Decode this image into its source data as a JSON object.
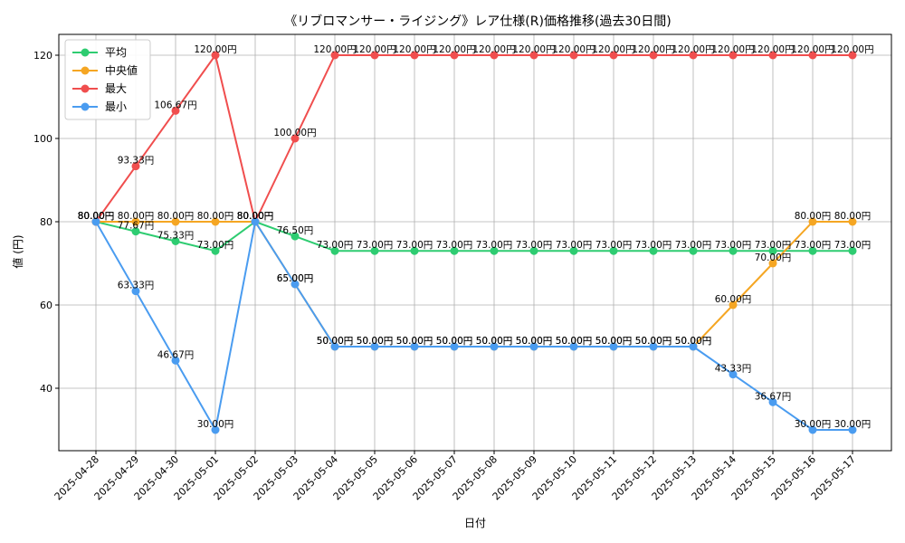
{
  "chart_data": {
    "type": "line",
    "title": "《リブロマンサー・ライジング》レア仕様(R)価格推移(過去30日間)",
    "xlabel": "日付",
    "ylabel": "値 (円)",
    "ylim": [
      25,
      125
    ],
    "yticks": [
      40,
      60,
      80,
      100,
      120
    ],
    "grid": true,
    "legend_position": "top-left",
    "label_suffix": "円",
    "categories": [
      "2025-04-28",
      "2025-04-29",
      "2025-04-30",
      "2025-05-01",
      "2025-05-02",
      "2025-05-03",
      "2025-05-04",
      "2025-05-05",
      "2025-05-06",
      "2025-05-07",
      "2025-05-08",
      "2025-05-09",
      "2025-05-10",
      "2025-05-11",
      "2025-05-12",
      "2025-05-13",
      "2025-05-14",
      "2025-05-15",
      "2025-05-16",
      "2025-05-17"
    ],
    "series": [
      {
        "name": "平均",
        "color": "#2ecc71",
        "values": [
          80,
          77.67,
          75.33,
          73,
          80,
          76.5,
          73,
          73,
          73,
          73,
          73,
          73,
          73,
          73,
          73,
          73,
          73,
          73,
          73,
          73
        ]
      },
      {
        "name": "中央値",
        "color": "#f5a623",
        "values": [
          80,
          80,
          80,
          80,
          80,
          65,
          50,
          50,
          50,
          50,
          50,
          50,
          50,
          50,
          50,
          50,
          60,
          70,
          80,
          80
        ]
      },
      {
        "name": "最大",
        "color": "#f04e4e",
        "values": [
          80,
          93.33,
          106.67,
          120,
          80,
          100,
          120,
          120,
          120,
          120,
          120,
          120,
          120,
          120,
          120,
          120,
          120,
          120,
          120,
          120
        ]
      },
      {
        "name": "最小",
        "color": "#4a9cf0",
        "values": [
          80,
          63.33,
          46.67,
          30,
          80,
          65,
          50,
          50,
          50,
          50,
          50,
          50,
          50,
          50,
          50,
          50,
          43.33,
          36.67,
          30,
          30
        ]
      }
    ]
  }
}
